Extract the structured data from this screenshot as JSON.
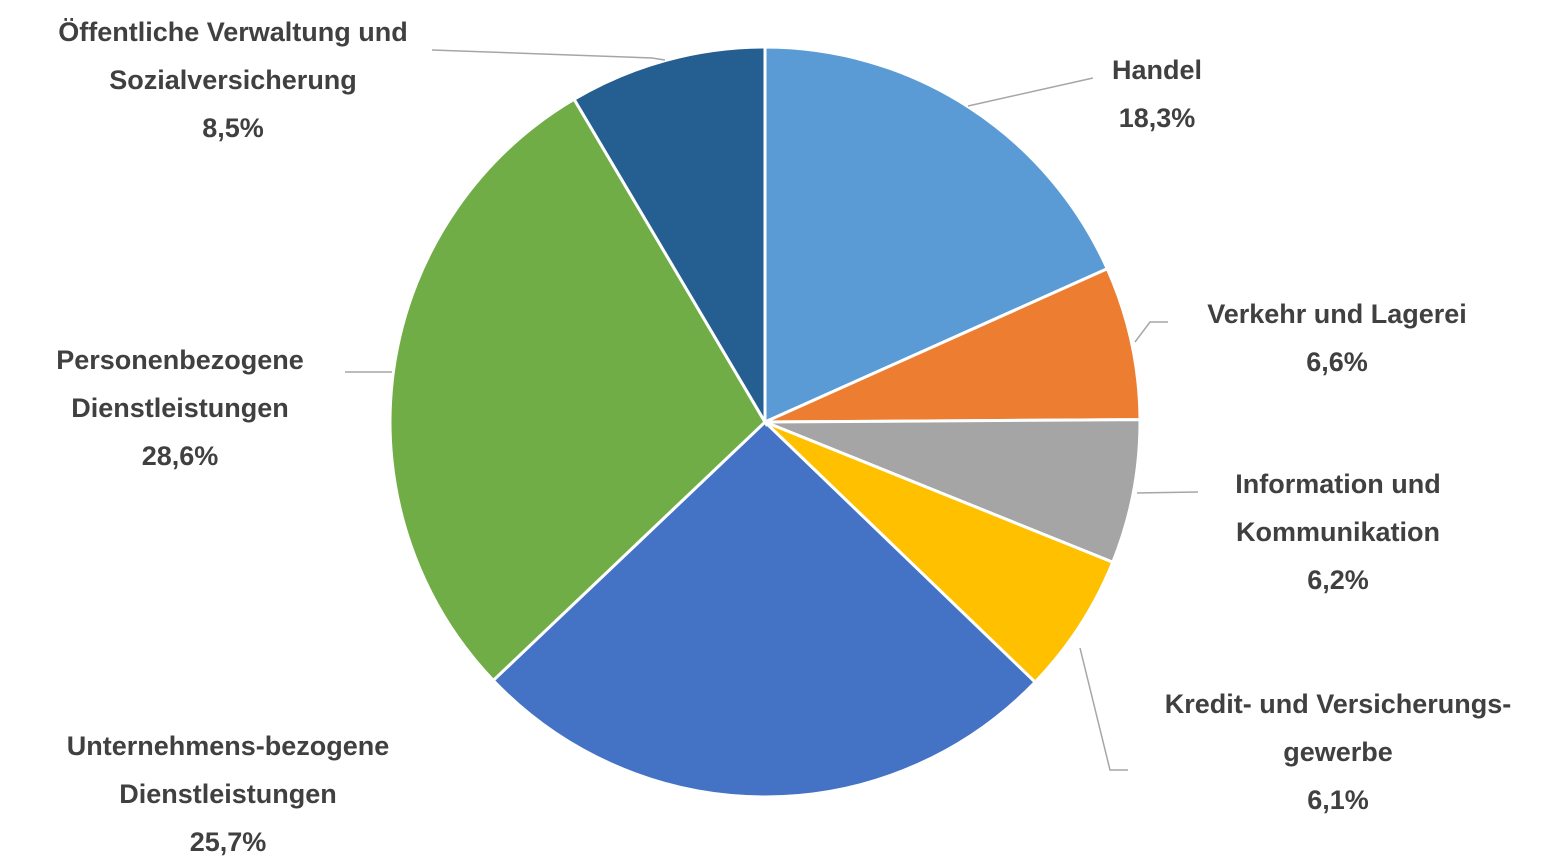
{
  "chart_data": {
    "type": "pie",
    "categories": [
      "Handel",
      "Verkehr und Lagerei",
      "Information und Kommunikation",
      "Kredit- und Versicherungs-gewerbe",
      "Unternehmens-bezogene Dienstleistungen",
      "Personenbezogene Dienstleistungen",
      "Öffentliche Verwaltung und Sozialversicherung"
    ],
    "values": [
      18.3,
      6.6,
      6.2,
      6.1,
      25.7,
      28.6,
      8.5
    ],
    "value_labels": [
      "18,3%",
      "6,6%",
      "6,2%",
      "6,1%",
      "25,7%",
      "28,6%",
      "8,5%"
    ],
    "colors": [
      "#5b9bd5",
      "#ed7d31",
      "#a5a5a5",
      "#ffc000",
      "#4472c4",
      "#70ad47",
      "#255e91"
    ]
  }
}
